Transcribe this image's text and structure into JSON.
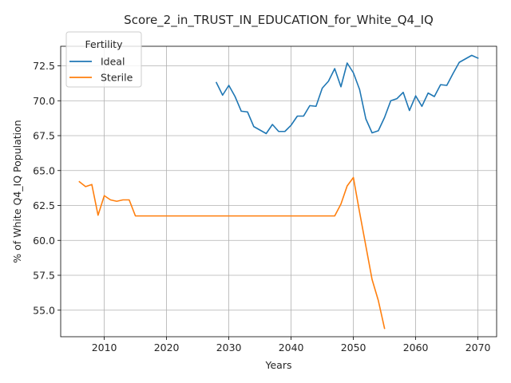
{
  "chart_data": {
    "type": "line",
    "title": "Score_2_in_TRUST_IN_EDUCATION_for_White_Q4_IQ",
    "xlabel": "Years",
    "ylabel": "% of White Q4_IQ Population",
    "xlim": [
      2003,
      2073
    ],
    "ylim": [
      53.1,
      73.9
    ],
    "xticks": [
      2010,
      2020,
      2030,
      2040,
      2050,
      2060,
      2070
    ],
    "yticks": [
      55.0,
      57.5,
      60.0,
      62.5,
      65.0,
      67.5,
      70.0,
      72.5
    ],
    "ytick_labels": [
      "55.0",
      "57.5",
      "60.0",
      "62.5",
      "65.0",
      "67.5",
      "70.0",
      "72.5"
    ],
    "grid": true,
    "legend": {
      "title": "Fertility",
      "placement": "top-left"
    },
    "series": [
      {
        "name": "Ideal",
        "color": "#1f77b4",
        "x": [
          2028,
          2029,
          2030,
          2031,
          2032,
          2033,
          2034,
          2035,
          2036,
          2037,
          2038,
          2039,
          2040,
          2041,
          2042,
          2043,
          2044,
          2045,
          2046,
          2047,
          2048,
          2049,
          2050,
          2051,
          2052,
          2053,
          2054,
          2055,
          2056,
          2057,
          2058,
          2059,
          2060,
          2061,
          2062,
          2063,
          2064,
          2065,
          2066,
          2067,
          2068,
          2069,
          2070
        ],
        "y": [
          71.3,
          70.4,
          71.1,
          70.3,
          69.25,
          69.2,
          68.15,
          67.9,
          67.65,
          68.3,
          67.8,
          67.8,
          68.25,
          68.9,
          68.9,
          69.65,
          69.6,
          70.9,
          71.4,
          72.3,
          71.0,
          72.7,
          72.0,
          70.8,
          68.7,
          67.7,
          67.85,
          68.8,
          70.0,
          70.15,
          70.6,
          69.3,
          70.35,
          69.6,
          70.55,
          70.3,
          71.15,
          71.1,
          71.95,
          72.75,
          73.0,
          73.25,
          73.05
        ]
      },
      {
        "name": "Sterile",
        "color": "#ff7f0e",
        "x": [
          2006,
          2007,
          2008,
          2009,
          2010,
          2011,
          2012,
          2013,
          2014,
          2015,
          2016,
          2017,
          2018,
          2019,
          2020,
          2021,
          2022,
          2023,
          2024,
          2025,
          2026,
          2027,
          2028,
          2029,
          2030,
          2031,
          2032,
          2033,
          2034,
          2035,
          2036,
          2037,
          2038,
          2039,
          2040,
          2041,
          2042,
          2043,
          2044,
          2045,
          2046,
          2047,
          2048,
          2049,
          2050,
          2051,
          2052,
          2053,
          2054,
          2055
        ],
        "y": [
          64.2,
          63.85,
          64.0,
          61.8,
          63.2,
          62.9,
          62.8,
          62.9,
          62.9,
          61.75,
          61.75,
          61.75,
          61.75,
          61.75,
          61.75,
          61.75,
          61.75,
          61.75,
          61.75,
          61.75,
          61.75,
          61.75,
          61.75,
          61.75,
          61.75,
          61.75,
          61.75,
          61.75,
          61.75,
          61.75,
          61.75,
          61.75,
          61.75,
          61.75,
          61.75,
          61.75,
          61.75,
          61.75,
          61.75,
          61.75,
          61.75,
          61.75,
          62.6,
          63.9,
          64.5,
          62.0,
          59.6,
          57.2,
          55.7,
          53.7
        ]
      }
    ]
  }
}
